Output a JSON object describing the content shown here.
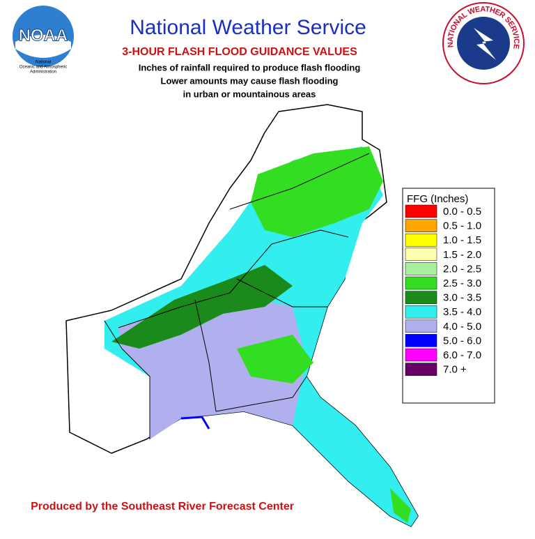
{
  "header": {
    "title": "National Weather Service",
    "subtitle": "3-HOUR FLASH FLOOD GUIDANCE VALUES",
    "notes": [
      "Inches of rainfall required to produce flash flooding",
      "Lower amounts may cause flash flooding",
      "in urban or mountainous areas"
    ]
  },
  "noaa_logo": {
    "acronym": "NOAA",
    "name": [
      "National",
      "Oceanic and Atmospheric",
      "Administration"
    ]
  },
  "nws_logo": {
    "text": "NATIONAL WEATHER SERVICE"
  },
  "legend": {
    "title": "FFG (Inches)",
    "items": [
      {
        "label": "0.0 - 0.5",
        "color": "#ff0000"
      },
      {
        "label": "0.5 - 1.0",
        "color": "#ffa500"
      },
      {
        "label": "1.0 - 1.5",
        "color": "#ffff00"
      },
      {
        "label": "1.5 - 2.0",
        "color": "#ffffb0"
      },
      {
        "label": "2.0 - 2.5",
        "color": "#a8f0a0"
      },
      {
        "label": "2.5 - 3.0",
        "color": "#33dd22"
      },
      {
        "label": "3.0 - 3.5",
        "color": "#1a8a1a"
      },
      {
        "label": "3.5 - 4.0",
        "color": "#33eeee"
      },
      {
        "label": "4.0 - 5.0",
        "color": "#b0b0ee"
      },
      {
        "label": "5.0 - 6.0",
        "color": "#0000ff"
      },
      {
        "label": "6.0 - 7.0",
        "color": "#ff00ff"
      },
      {
        "label": "7.0 +",
        "color": "#660066"
      }
    ]
  },
  "footer": "Produced by the Southeast River Forecast Center"
}
